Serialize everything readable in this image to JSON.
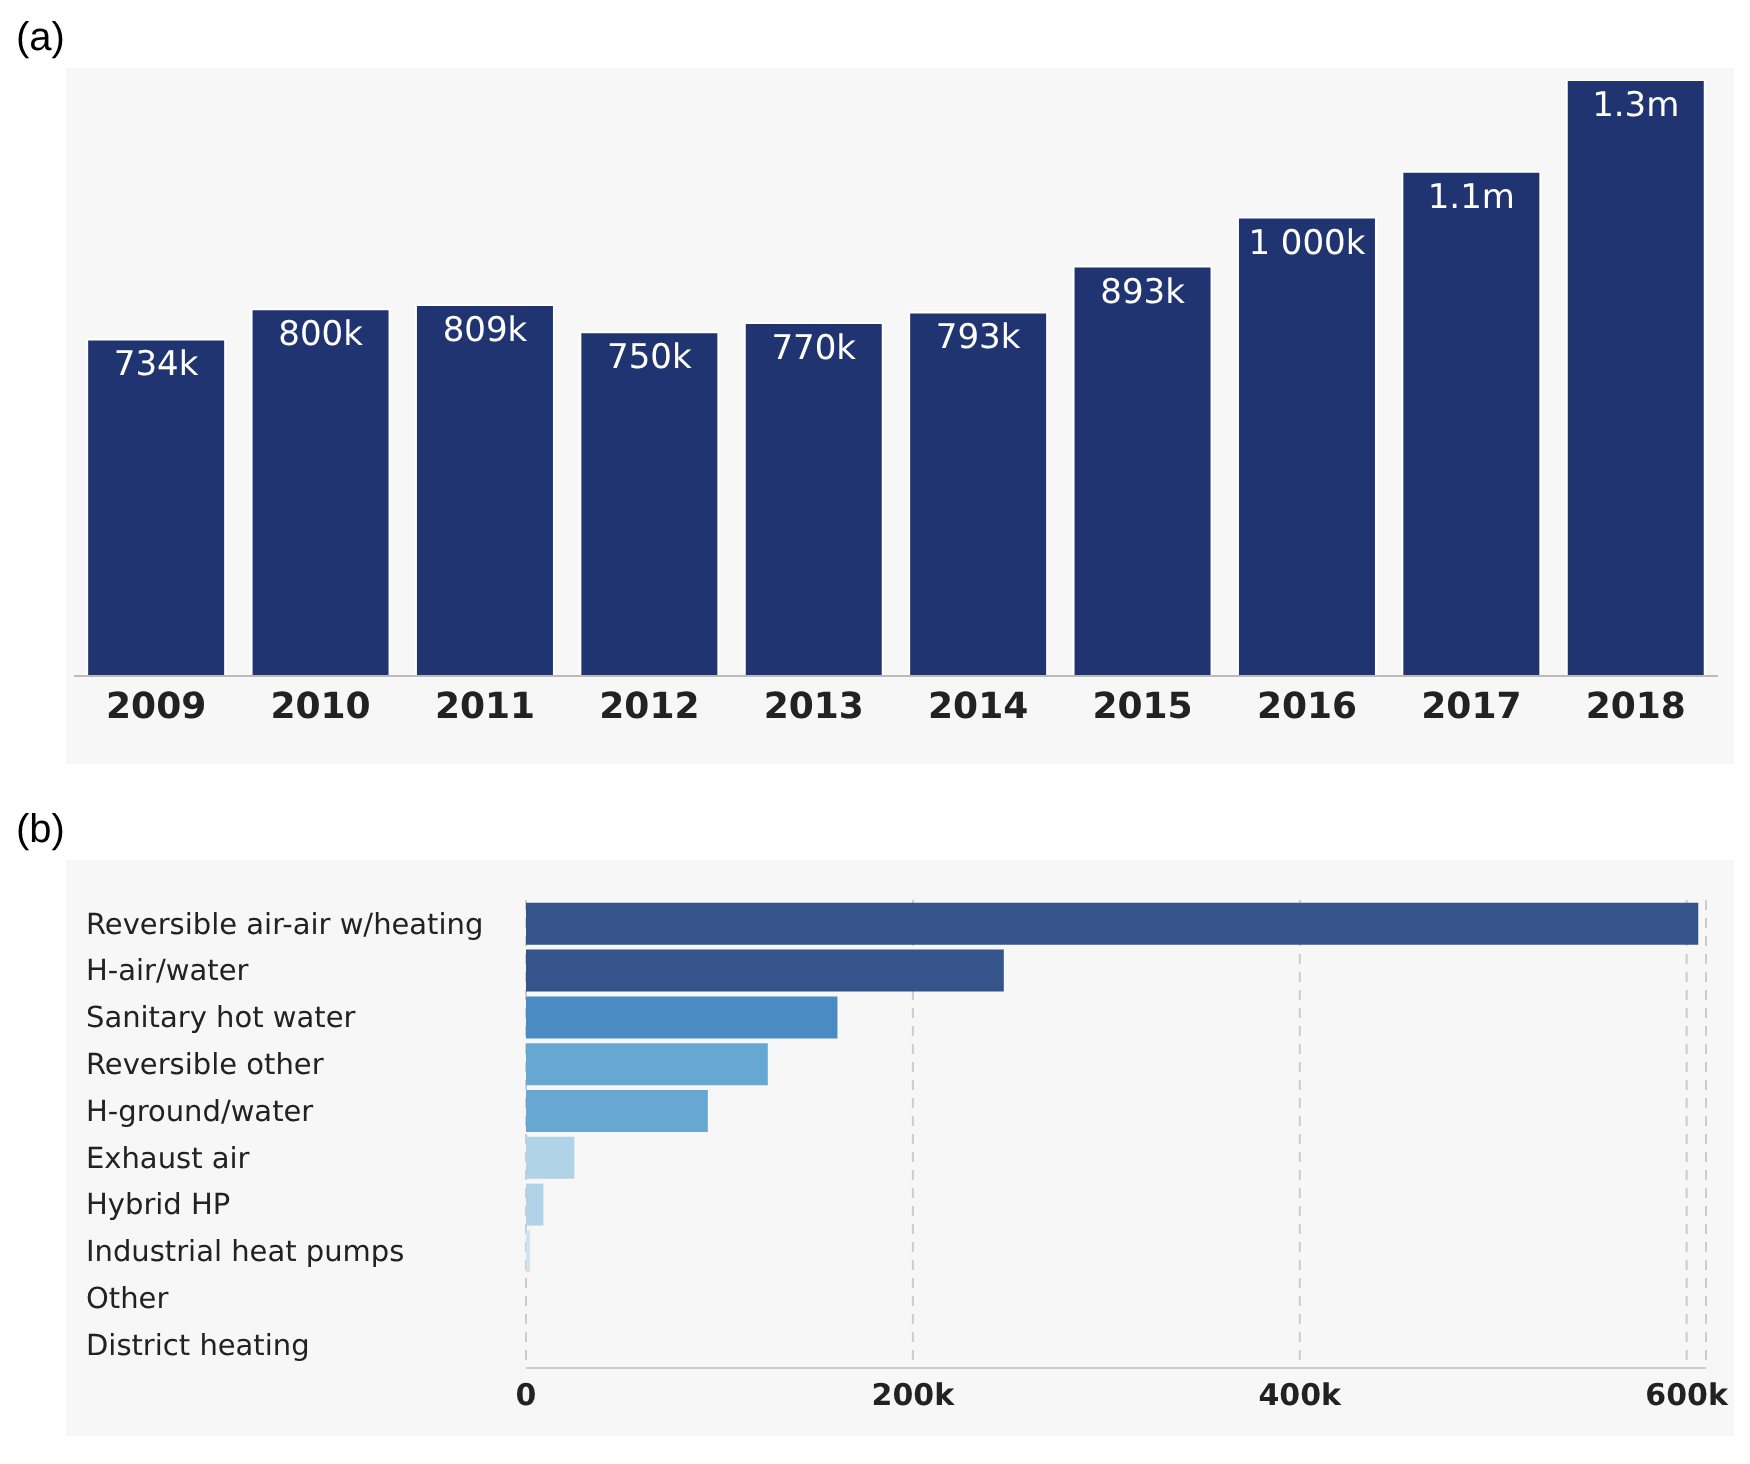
{
  "chart_data": [
    {
      "type": "bar",
      "title": "(a)",
      "categories": [
        "2009",
        "2010",
        "2011",
        "2012",
        "2013",
        "2014",
        "2015",
        "2016",
        "2017",
        "2018"
      ],
      "values": [
        734000,
        800000,
        809000,
        750000,
        770000,
        793000,
        893000,
        1000000,
        1100000,
        1300000
      ],
      "value_labels": [
        "734k",
        "800k",
        "809k",
        "750k",
        "770k",
        "793k",
        "893k",
        "1 000k",
        "1.1m",
        "1.3m"
      ],
      "color": "#1f3470",
      "tick_labels": "x",
      "grid": false,
      "legend": false
    },
    {
      "type": "bar",
      "title": "(b)",
      "orientation": "horizontal",
      "categories": [
        "Reversible air-air w/heating",
        "H-air/water",
        "Sanitary hot water",
        "Reversible other",
        "H-ground/water",
        "Exhaust air",
        "Hybrid HP",
        "Industrial heat pumps",
        "Other",
        "District heating"
      ],
      "values": [
        606000,
        247000,
        161000,
        125000,
        94000,
        25000,
        9000,
        2000,
        0,
        0
      ],
      "colors": [
        "#34548a",
        "#34548a",
        "#4a8bc4",
        "#67a8d3",
        "#67a8d3",
        "#b0d3e8",
        "#b0d3e8",
        "#cfe3f0",
        "#cfe3f0",
        "#cfe3f0"
      ],
      "xlim": [
        0,
        610000
      ],
      "xticks": [
        0,
        {
          "value": 200000,
          "label": "200k"
        },
        {
          "value": 400000,
          "label": "400k"
        },
        {
          "value": 600000,
          "label": "600k"
        }
      ],
      "grid": "x",
      "legend": false
    }
  ]
}
